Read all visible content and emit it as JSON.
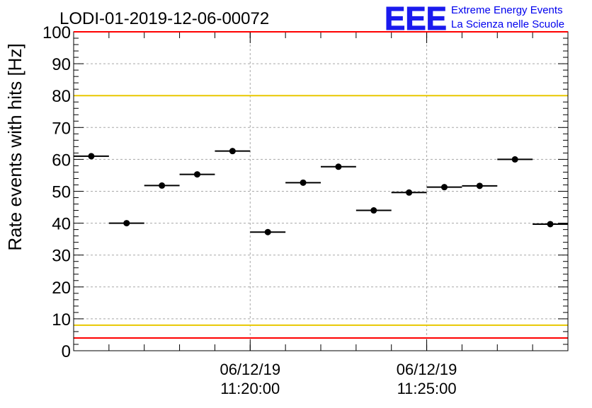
{
  "chart_data": {
    "type": "scatter",
    "title": "LODI-01-2019-12-06-00072",
    "ylabel": "Rate events with hits [Hz]",
    "xlabel": "",
    "ylim": [
      0,
      100
    ],
    "yticks": [
      0,
      10,
      20,
      30,
      40,
      50,
      60,
      70,
      80,
      90,
      100
    ],
    "grid": true,
    "x_unit": "minutes after 11:15:00",
    "xlim": [
      -0.5,
      13.5
    ],
    "xticks": [
      {
        "x": 4.5,
        "date": "06/12/19",
        "time": "11:20:00"
      },
      {
        "x": 9.5,
        "date": "06/12/19",
        "time": "11:25:00"
      }
    ],
    "points": [
      {
        "x": 0,
        "y": 61.0
      },
      {
        "x": 1,
        "y": 40.0
      },
      {
        "x": 2,
        "y": 51.8
      },
      {
        "x": 3,
        "y": 55.3
      },
      {
        "x": 4,
        "y": 62.6
      },
      {
        "x": 5,
        "y": 37.2
      },
      {
        "x": 6,
        "y": 52.7
      },
      {
        "x": 7,
        "y": 57.7
      },
      {
        "x": 8,
        "y": 44.0
      },
      {
        "x": 9,
        "y": 49.6
      },
      {
        "x": 10,
        "y": 51.3
      },
      {
        "x": 11,
        "y": 51.7
      },
      {
        "x": 12,
        "y": 60.0
      },
      {
        "x": 13,
        "y": 39.7
      }
    ],
    "reference_lines": [
      {
        "y": 100,
        "color": "#ff0000"
      },
      {
        "y": 80,
        "color": "#e8c800"
      },
      {
        "y": 8,
        "color": "#e8c800"
      },
      {
        "y": 4,
        "color": "#ff0000"
      }
    ]
  },
  "logo": {
    "text": "EEE",
    "line1": "Extreme Energy Events",
    "line2": "La Scienza nelle Scuole",
    "color": "#0000ee"
  }
}
